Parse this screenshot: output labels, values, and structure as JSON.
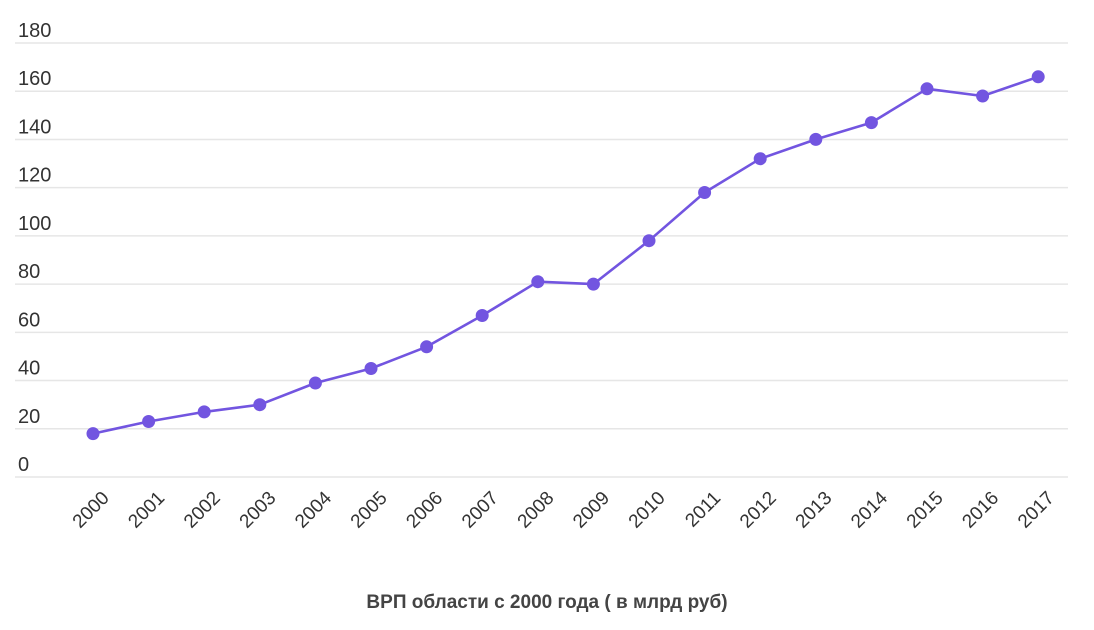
{
  "chart_data": {
    "type": "line",
    "title": "",
    "caption": "ВРП области с 2000 года ( в млрд руб)",
    "xlabel": "",
    "ylabel": "",
    "ylim": [
      0,
      180
    ],
    "y_ticks": [
      0,
      20,
      40,
      60,
      80,
      100,
      120,
      140,
      160,
      180
    ],
    "grid": true,
    "legend": "none",
    "x": [
      "2000",
      "2001",
      "2002",
      "2003",
      "2004",
      "2005",
      "2006",
      "2007",
      "2008",
      "2009",
      "2010",
      "2011",
      "2012",
      "2013",
      "2014",
      "2015",
      "2016",
      "2017"
    ],
    "series": [
      {
        "color": "#7255e0",
        "values": [
          18,
          23,
          27,
          30,
          39,
          45,
          54,
          67,
          81,
          80,
          98,
          118,
          132,
          140,
          147,
          161,
          158,
          166
        ]
      }
    ]
  }
}
